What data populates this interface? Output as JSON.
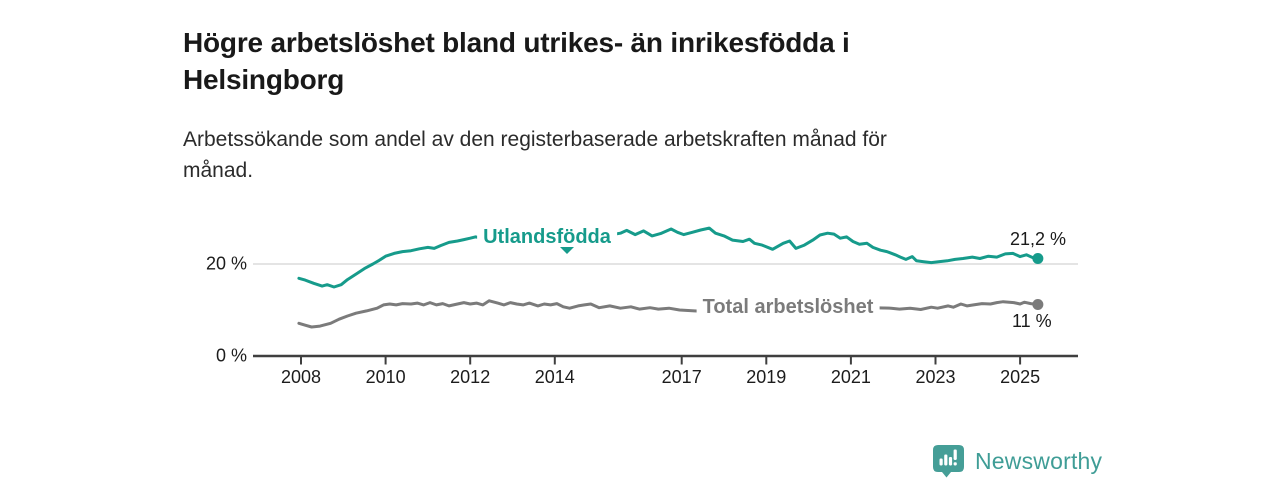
{
  "header": {
    "title_lines": [
      "Högre arbetslöshet bland utrikes- än inrikesfödda i",
      "Helsingborg"
    ],
    "subtitle_lines": [
      "Arbetssökande som andel av den registerbaserade arbetskraften månad för",
      "månad."
    ]
  },
  "chart_data": {
    "type": "line",
    "title": "Högre arbetslöshet bland utrikes- än inrikesfödda i Helsingborg",
    "subtitle": "Arbetssökande som andel av den registerbaserade arbetskraften månad för månad.",
    "unit": "%",
    "grid": "horizontal gridline at 20 % only",
    "legend_position": "inline labels on lines",
    "x_axis": {
      "range": [
        2007.9,
        2026.4
      ],
      "ticks": [
        {
          "year": 2008,
          "label": "2008"
        },
        {
          "year": 2010,
          "label": "2010"
        },
        {
          "year": 2012,
          "label": "2012"
        },
        {
          "year": 2014,
          "label": "2014"
        },
        {
          "year": 2017,
          "label": "2017"
        },
        {
          "year": 2019,
          "label": "2019"
        },
        {
          "year": 2021,
          "label": "2021"
        },
        {
          "year": 2023,
          "label": "2023"
        },
        {
          "year": 2025,
          "label": "2025"
        }
      ]
    },
    "y_axis": {
      "range": [
        0,
        30
      ],
      "ticks": [
        {
          "value": 0,
          "label": "0 %",
          "gridline": false
        },
        {
          "value": 20,
          "label": "20 %",
          "gridline": true
        }
      ]
    },
    "series": [
      {
        "name": "Utlandsfödda",
        "color": "#169B8B",
        "end_label": "21,2 %",
        "end_value": 21.2,
        "points": [
          [
            2007.95,
            16.9
          ],
          [
            2008.1,
            16.5
          ],
          [
            2008.3,
            15.8
          ],
          [
            2008.5,
            15.2
          ],
          [
            2008.62,
            15.5
          ],
          [
            2008.78,
            15.0
          ],
          [
            2008.95,
            15.5
          ],
          [
            2009.1,
            16.6
          ],
          [
            2009.3,
            17.8
          ],
          [
            2009.5,
            19.0
          ],
          [
            2009.7,
            20.0
          ],
          [
            2009.85,
            20.8
          ],
          [
            2010.0,
            21.7
          ],
          [
            2010.2,
            22.3
          ],
          [
            2010.4,
            22.7
          ],
          [
            2010.6,
            22.9
          ],
          [
            2010.8,
            23.3
          ],
          [
            2011.0,
            23.6
          ],
          [
            2011.15,
            23.4
          ],
          [
            2011.3,
            24.0
          ],
          [
            2011.5,
            24.7
          ],
          [
            2011.7,
            25.0
          ],
          [
            2011.85,
            25.3
          ],
          [
            2012.0,
            25.6
          ],
          [
            2012.12,
            25.9
          ],
          [
            2012.3,
            25.6
          ],
          [
            2012.55,
            25.8
          ],
          [
            2012.8,
            26.0
          ],
          [
            2013.05,
            26.1
          ],
          [
            2013.3,
            25.9
          ],
          [
            2013.55,
            26.2
          ],
          [
            2013.8,
            26.3
          ],
          [
            2014.05,
            26.4
          ],
          [
            2014.3,
            26.2
          ],
          [
            2014.55,
            26.5
          ],
          [
            2014.8,
            26.4
          ],
          [
            2015.05,
            26.6
          ],
          [
            2015.3,
            26.3
          ],
          [
            2015.55,
            26.7
          ],
          [
            2015.7,
            27.3
          ],
          [
            2015.9,
            26.4
          ],
          [
            2016.1,
            27.2
          ],
          [
            2016.3,
            26.1
          ],
          [
            2016.5,
            26.6
          ],
          [
            2016.75,
            27.6
          ],
          [
            2016.9,
            26.9
          ],
          [
            2017.05,
            26.4
          ],
          [
            2017.25,
            26.9
          ],
          [
            2017.45,
            27.4
          ],
          [
            2017.65,
            27.8
          ],
          [
            2017.8,
            26.7
          ],
          [
            2018.0,
            26.1
          ],
          [
            2018.2,
            25.2
          ],
          [
            2018.45,
            24.9
          ],
          [
            2018.6,
            25.4
          ],
          [
            2018.72,
            24.5
          ],
          [
            2018.9,
            24.1
          ],
          [
            2019.15,
            23.2
          ],
          [
            2019.4,
            24.5
          ],
          [
            2019.55,
            25.0
          ],
          [
            2019.7,
            23.4
          ],
          [
            2019.9,
            24.1
          ],
          [
            2020.1,
            25.2
          ],
          [
            2020.27,
            26.3
          ],
          [
            2020.45,
            26.7
          ],
          [
            2020.6,
            26.5
          ],
          [
            2020.75,
            25.6
          ],
          [
            2020.9,
            25.9
          ],
          [
            2021.05,
            24.9
          ],
          [
            2021.2,
            24.3
          ],
          [
            2021.38,
            24.5
          ],
          [
            2021.52,
            23.6
          ],
          [
            2021.7,
            23.0
          ],
          [
            2021.85,
            22.7
          ],
          [
            2022.05,
            22.0
          ],
          [
            2022.17,
            21.5
          ],
          [
            2022.3,
            21.0
          ],
          [
            2022.45,
            21.6
          ],
          [
            2022.55,
            20.7
          ],
          [
            2022.72,
            20.5
          ],
          [
            2022.9,
            20.3
          ],
          [
            2023.07,
            20.5
          ],
          [
            2023.28,
            20.7
          ],
          [
            2023.46,
            21.0
          ],
          [
            2023.65,
            21.2
          ],
          [
            2023.87,
            21.5
          ],
          [
            2024.05,
            21.2
          ],
          [
            2024.25,
            21.7
          ],
          [
            2024.45,
            21.5
          ],
          [
            2024.65,
            22.2
          ],
          [
            2024.83,
            22.3
          ],
          [
            2025.0,
            21.6
          ],
          [
            2025.15,
            22.0
          ],
          [
            2025.3,
            21.4
          ],
          [
            2025.42,
            21.2
          ]
        ]
      },
      {
        "name": "Total arbetslöshet",
        "color": "#7B7B7B",
        "end_label": "11 %",
        "end_value": 11.2,
        "points": [
          [
            2007.95,
            7.1
          ],
          [
            2008.1,
            6.7
          ],
          [
            2008.25,
            6.3
          ],
          [
            2008.45,
            6.5
          ],
          [
            2008.7,
            7.1
          ],
          [
            2008.9,
            8.0
          ],
          [
            2009.1,
            8.7
          ],
          [
            2009.3,
            9.3
          ],
          [
            2009.55,
            9.8
          ],
          [
            2009.8,
            10.4
          ],
          [
            2009.95,
            11.1
          ],
          [
            2010.1,
            11.3
          ],
          [
            2010.25,
            11.1
          ],
          [
            2010.4,
            11.4
          ],
          [
            2010.6,
            11.3
          ],
          [
            2010.75,
            11.5
          ],
          [
            2010.9,
            11.1
          ],
          [
            2011.05,
            11.6
          ],
          [
            2011.2,
            11.1
          ],
          [
            2011.35,
            11.4
          ],
          [
            2011.5,
            10.9
          ],
          [
            2011.7,
            11.3
          ],
          [
            2011.85,
            11.6
          ],
          [
            2012.0,
            11.3
          ],
          [
            2012.15,
            11.5
          ],
          [
            2012.3,
            11.1
          ],
          [
            2012.45,
            12.0
          ],
          [
            2012.65,
            11.5
          ],
          [
            2012.8,
            11.1
          ],
          [
            2012.95,
            11.6
          ],
          [
            2013.1,
            11.3
          ],
          [
            2013.25,
            11.1
          ],
          [
            2013.4,
            11.5
          ],
          [
            2013.6,
            10.9
          ],
          [
            2013.75,
            11.3
          ],
          [
            2013.9,
            11.1
          ],
          [
            2014.05,
            11.4
          ],
          [
            2014.2,
            10.7
          ],
          [
            2014.35,
            10.4
          ],
          [
            2014.55,
            10.9
          ],
          [
            2014.7,
            11.1
          ],
          [
            2014.85,
            11.3
          ],
          [
            2015.05,
            10.5
          ],
          [
            2015.3,
            10.9
          ],
          [
            2015.55,
            10.4
          ],
          [
            2015.8,
            10.7
          ],
          [
            2016.0,
            10.2
          ],
          [
            2016.25,
            10.5
          ],
          [
            2016.45,
            10.2
          ],
          [
            2016.7,
            10.4
          ],
          [
            2016.95,
            10.0
          ],
          [
            2017.3,
            9.8
          ],
          [
            2017.7,
            9.6
          ],
          [
            2018.1,
            9.4
          ],
          [
            2018.5,
            9.2
          ],
          [
            2019.0,
            9.3
          ],
          [
            2019.5,
            9.5
          ],
          [
            2019.9,
            10.0
          ],
          [
            2020.3,
            11.2
          ],
          [
            2020.5,
            11.5
          ],
          [
            2020.8,
            11.1
          ],
          [
            2021.1,
            10.8
          ],
          [
            2021.5,
            10.5
          ],
          [
            2021.95,
            10.4
          ],
          [
            2022.15,
            10.2
          ],
          [
            2022.4,
            10.4
          ],
          [
            2022.65,
            10.1
          ],
          [
            2022.9,
            10.6
          ],
          [
            2023.05,
            10.4
          ],
          [
            2023.3,
            10.9
          ],
          [
            2023.42,
            10.6
          ],
          [
            2023.6,
            11.3
          ],
          [
            2023.75,
            10.9
          ],
          [
            2023.9,
            11.1
          ],
          [
            2024.1,
            11.4
          ],
          [
            2024.3,
            11.3
          ],
          [
            2024.45,
            11.6
          ],
          [
            2024.6,
            11.8
          ],
          [
            2024.85,
            11.6
          ],
          [
            2025.0,
            11.3
          ],
          [
            2025.1,
            11.7
          ],
          [
            2025.25,
            11.4
          ],
          [
            2025.42,
            11.2
          ]
        ]
      }
    ],
    "colors": {
      "axis": "#3F3F3F",
      "gridline": "#DBDBDB",
      "tick_text": "#1C1C1C"
    }
  },
  "branding": {
    "logo_text": "Newsworthy",
    "logo_color": "#3F9D96",
    "logo_icon": "newsworthy-bar-chart-speech-bubble"
  }
}
